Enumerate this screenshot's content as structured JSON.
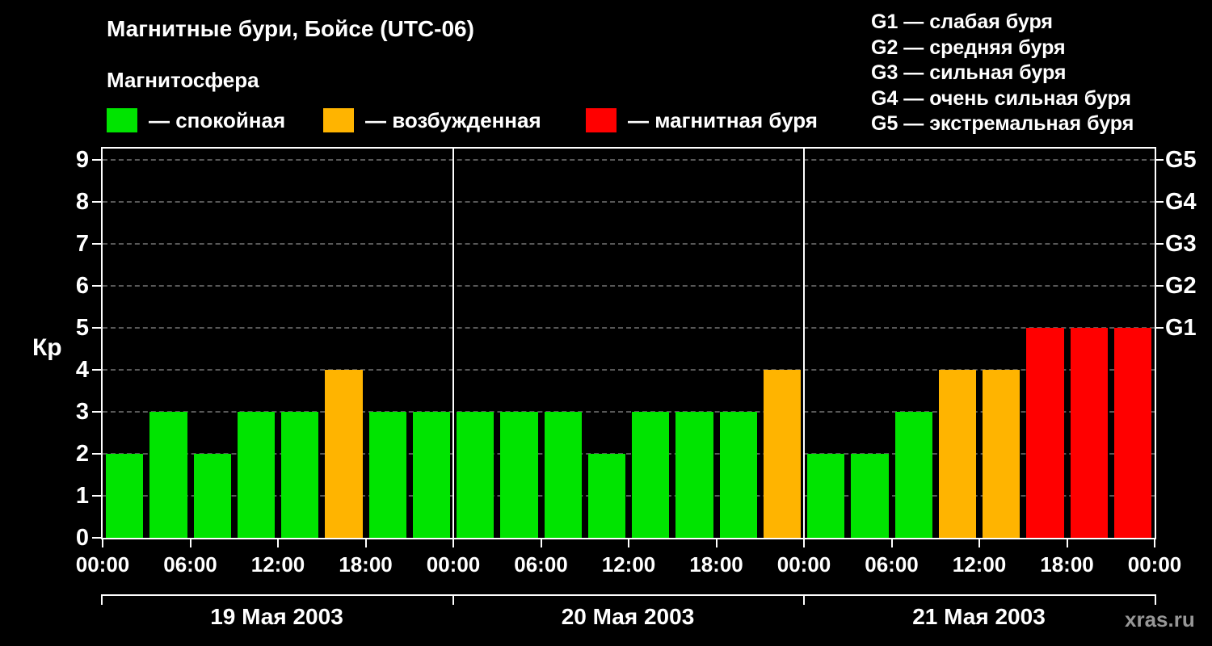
{
  "header": {
    "title": "Магнитные бури, Бойсе (UTC-06)",
    "subtitle": "Магнитосфера"
  },
  "legend": {
    "items": [
      {
        "name": "quiet",
        "color": "#00e400",
        "label": "— спокойная"
      },
      {
        "name": "excited",
        "color": "#ffb400",
        "label": "— возбужденная"
      },
      {
        "name": "storm",
        "color": "#ff0000",
        "label": "— магнитная буря"
      }
    ]
  },
  "storm_scale_legend": {
    "items": [
      "G1 — слабая буря",
      "G2 — средняя буря",
      "G3 — сильная буря",
      "G4 — очень сильная буря",
      "G5 — экстремальная буря"
    ]
  },
  "watermark": "xras.ru",
  "chart_data": {
    "type": "bar",
    "title": "Магнитные бури, Бойсе (UTC-06)",
    "ylabel": "Кр",
    "ylim": [
      0,
      9.3
    ],
    "yticks": [
      0,
      1,
      2,
      3,
      4,
      5,
      6,
      7,
      8,
      9
    ],
    "right_axis_labels": [
      {
        "value": 9,
        "label": "G5"
      },
      {
        "value": 8,
        "label": "G4"
      },
      {
        "value": 7,
        "label": "G3"
      },
      {
        "value": 6,
        "label": "G2"
      },
      {
        "value": 5,
        "label": "G1"
      }
    ],
    "x_tick_labels": [
      "00:00",
      "06:00",
      "12:00",
      "18:00",
      "00:00",
      "06:00",
      "12:00",
      "18:00",
      "00:00",
      "06:00",
      "12:00",
      "18:00",
      "00:00"
    ],
    "days": [
      {
        "date": "19 Мая 2003",
        "kp_values": [
          2,
          3,
          2,
          3,
          3,
          4,
          3,
          3
        ]
      },
      {
        "date": "20 Мая 2003",
        "kp_values": [
          3,
          3,
          3,
          2,
          3,
          3,
          3,
          4
        ]
      },
      {
        "date": "21 Мая 2003",
        "kp_values": [
          2,
          2,
          3,
          4,
          4,
          5,
          5,
          5
        ]
      }
    ],
    "bar_colors": {
      "quiet": "#00e400",
      "excited": "#ffb400",
      "storm": "#ff0000"
    },
    "color_thresholds": {
      "quiet_max": 3,
      "excited_max": 4
    },
    "grid": {
      "style": "dashed",
      "color": "#585858"
    },
    "legend_position": "top",
    "background": "#000000"
  }
}
